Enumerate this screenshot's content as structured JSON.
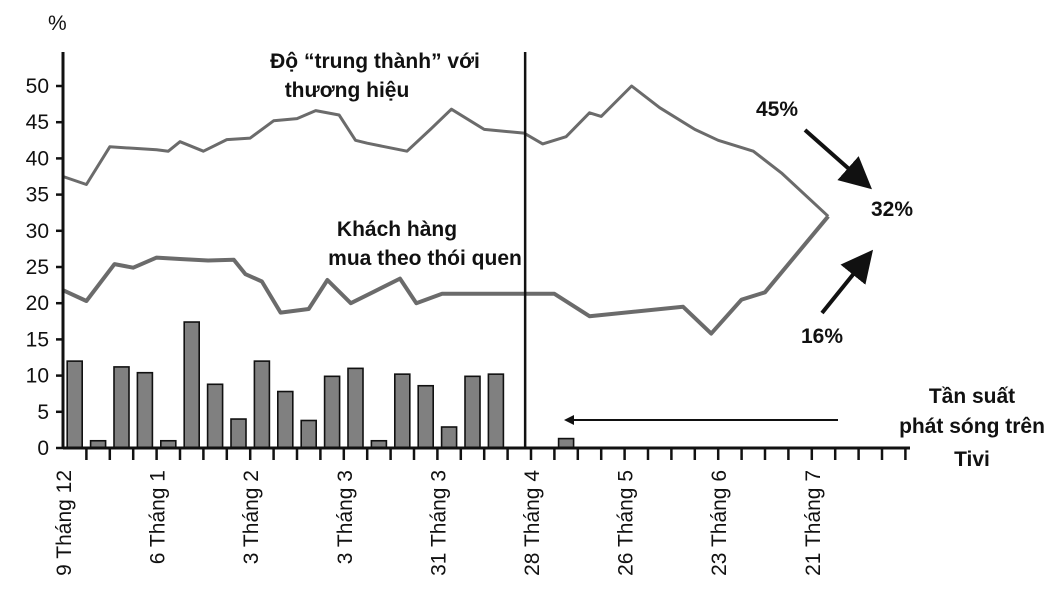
{
  "chart_data": {
    "type": "line",
    "ylabel": "%",
    "ylim": [
      0,
      50
    ],
    "yticks": [
      0,
      5,
      10,
      15,
      20,
      25,
      30,
      35,
      40,
      45,
      50
    ],
    "x_labels": [
      "9 Tháng 12",
      "6 Tháng 1",
      "3 Tháng 2",
      "3 Tháng 3",
      "31 Tháng 3",
      "28 Tháng 4",
      "26 Tháng 5",
      "23 Tháng 6",
      "21 Tháng 7"
    ],
    "x_label_positions": [
      0,
      4,
      8,
      12,
      16,
      20,
      24,
      28,
      32
    ],
    "divider_at": 19.75,
    "series": [
      {
        "name": "Độ “trung thành” với thương hiệu",
        "color": "#6b6b6b",
        "points": [
          [
            0,
            37.5
          ],
          [
            1,
            36.4
          ],
          [
            2,
            41.6
          ],
          [
            3,
            41.4
          ],
          [
            4,
            41.2
          ],
          [
            4.5,
            41.0
          ],
          [
            5,
            42.3
          ],
          [
            6,
            41.0
          ],
          [
            7,
            42.6
          ],
          [
            8,
            42.8
          ],
          [
            9,
            45.2
          ],
          [
            10,
            45.5
          ],
          [
            10.8,
            46.6
          ],
          [
            11.8,
            46.0
          ],
          [
            12.5,
            42.5
          ],
          [
            13,
            42.1
          ],
          [
            14.7,
            41.0
          ],
          [
            15.7,
            44.0
          ],
          [
            16.6,
            46.8
          ],
          [
            18,
            44.0
          ],
          [
            19.7,
            43.5
          ],
          [
            20.5,
            42.0
          ],
          [
            21.5,
            43.0
          ],
          [
            22.5,
            46.3
          ],
          [
            23,
            45.8
          ],
          [
            24.3,
            50.0
          ],
          [
            25.5,
            47.0
          ],
          [
            27,
            44.0
          ],
          [
            28,
            42.5
          ],
          [
            29.5,
            41.0
          ],
          [
            30.7,
            38.0
          ],
          [
            32.7,
            32.0
          ]
        ]
      },
      {
        "name": "Khách hàng mua theo thói quen",
        "color": "#6b6b6b",
        "points": [
          [
            0,
            21.8
          ],
          [
            1,
            20.3
          ],
          [
            2.2,
            25.4
          ],
          [
            3,
            24.9
          ],
          [
            4,
            26.3
          ],
          [
            5,
            26.1
          ],
          [
            6.2,
            25.9
          ],
          [
            7.3,
            26.0
          ],
          [
            7.8,
            24.0
          ],
          [
            8.5,
            23.0
          ],
          [
            9.3,
            18.7
          ],
          [
            10.5,
            19.2
          ],
          [
            11.3,
            23.2
          ],
          [
            12.3,
            20.0
          ],
          [
            13.3,
            21.6
          ],
          [
            14.4,
            23.4
          ],
          [
            15.1,
            20.0
          ],
          [
            16.2,
            21.3
          ],
          [
            19.7,
            21.3
          ],
          [
            21,
            21.3
          ],
          [
            22.5,
            18.2
          ],
          [
            26.5,
            19.5
          ],
          [
            27.7,
            15.8
          ],
          [
            29,
            20.5
          ],
          [
            30,
            21.5
          ],
          [
            32.7,
            32.0
          ]
        ]
      }
    ],
    "bars": {
      "name": "Tần suất phát sóng trên Tivi",
      "color": "#808080",
      "positions": [
        0.5,
        1.5,
        2.5,
        3.5,
        4.5,
        5.5,
        6.5,
        7.5,
        8.5,
        9.5,
        10.5,
        11.5,
        12.5,
        13.5,
        14.5,
        15.5,
        16.5,
        17.5,
        18.5,
        21.5
      ],
      "values": [
        12.0,
        1.0,
        11.2,
        10.4,
        1.0,
        17.4,
        8.8,
        4.0,
        12.0,
        7.8,
        3.8,
        9.9,
        11.0,
        1.0,
        10.2,
        8.6,
        2.9,
        9.9,
        10.2,
        1.3
      ]
    },
    "annotations": {
      "brand_loyalty": "Độ “trung thành” với",
      "brand_loyalty_2": "thương hiệu",
      "habitual": "Khách hàng",
      "habitual_2": "mua theo thói quen",
      "tv_1": "Tần suất",
      "tv_2": "phát sóng trên",
      "tv_3": "Tivi",
      "p45": "45%",
      "p32": "32%",
      "p16": "16%"
    }
  }
}
